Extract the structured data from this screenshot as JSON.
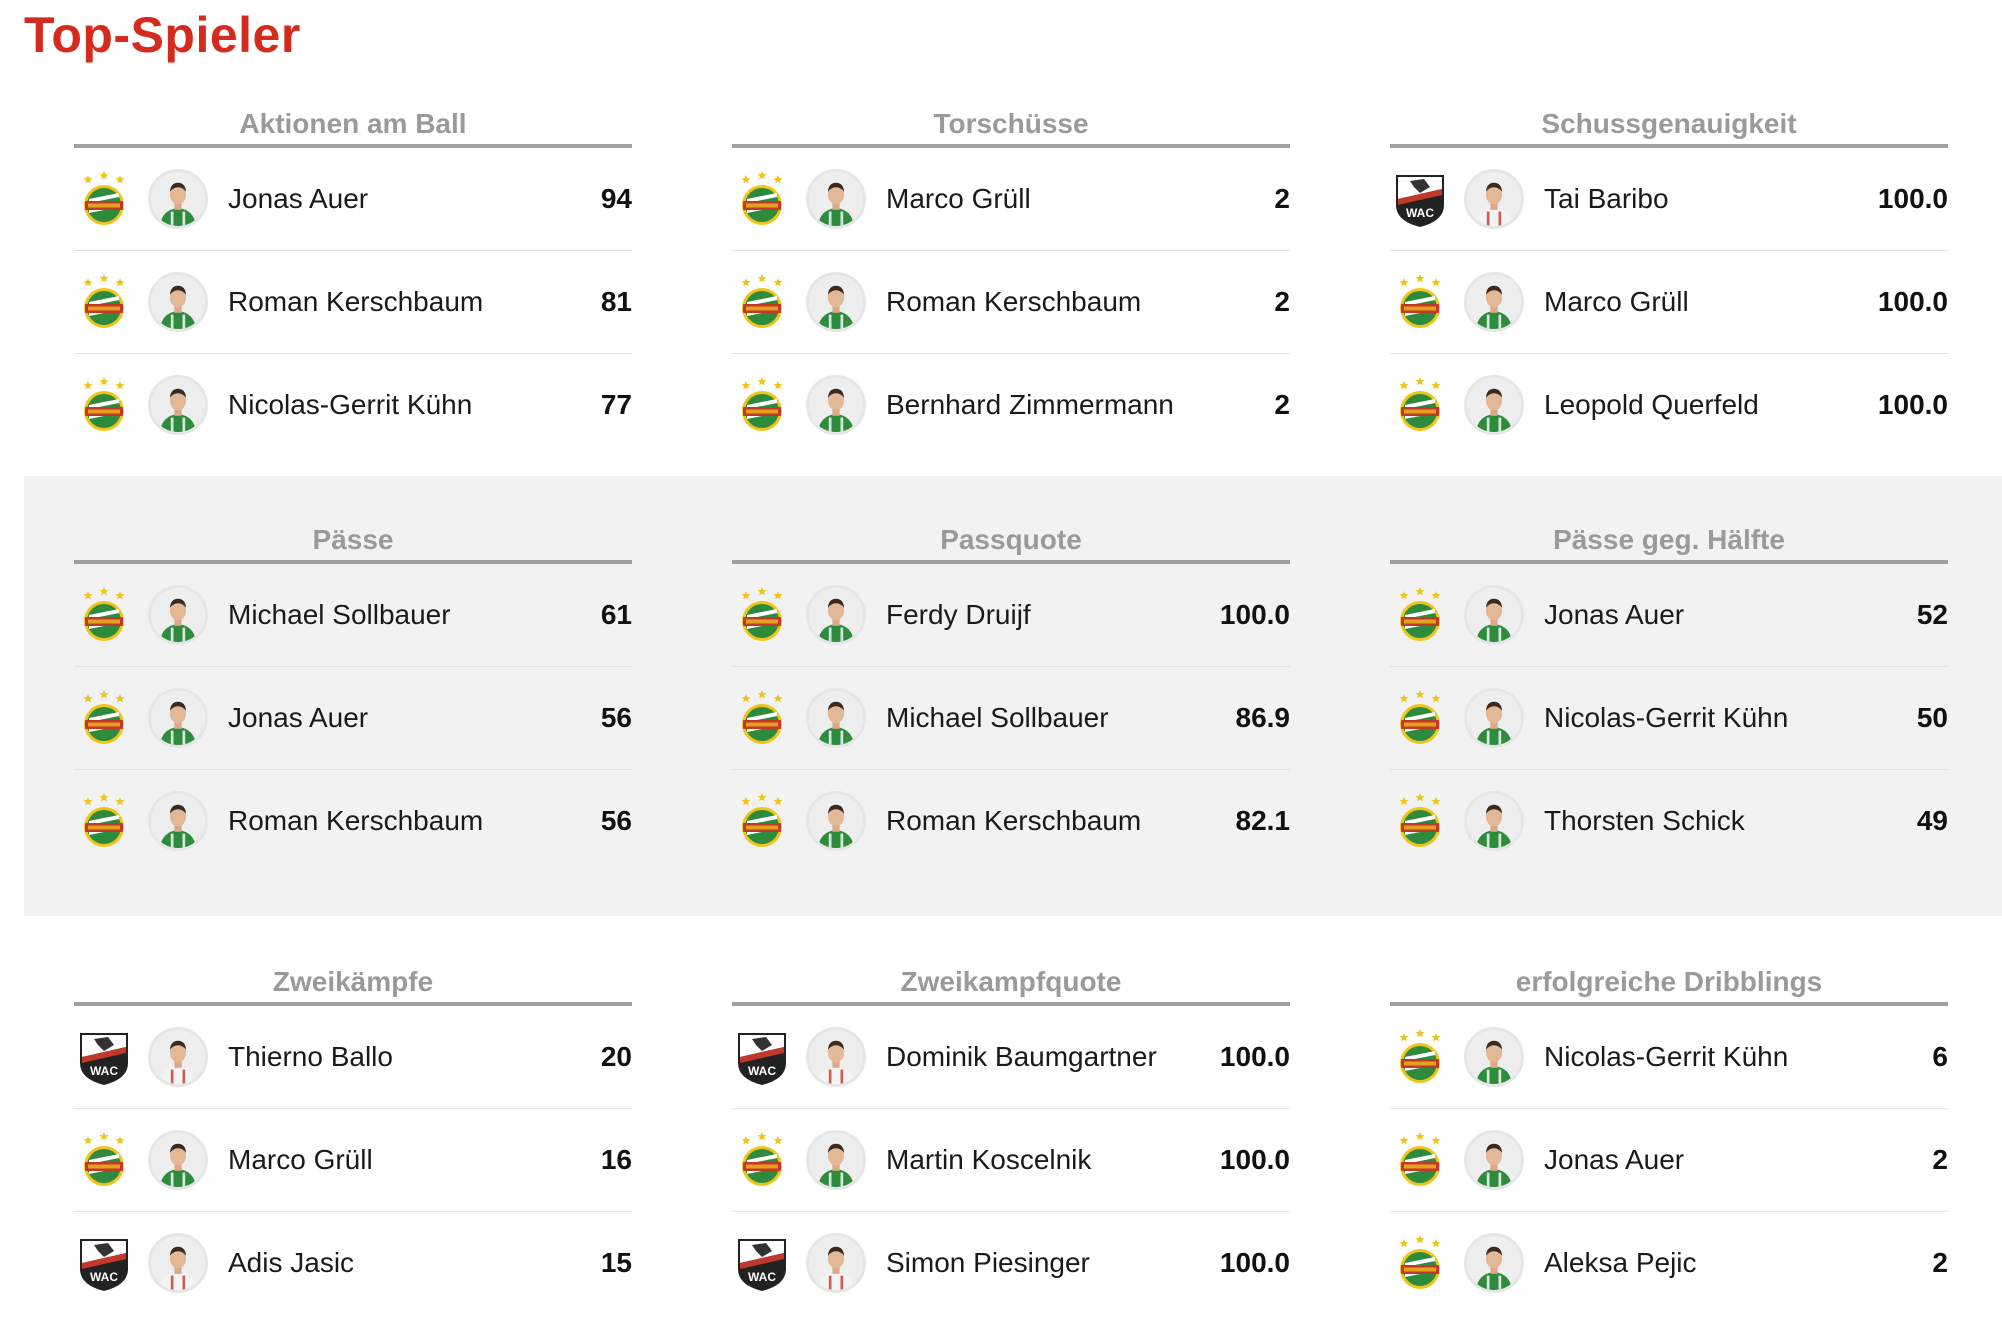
{
  "title": "Top-Spieler",
  "colors": {
    "accent": "#d52b1e",
    "header_text": "#9a9a9a",
    "rapid_green": "#2e8b3e",
    "wac_black": "#222222"
  },
  "rows": [
    {
      "shaded": false,
      "categories": [
        {
          "label": "Aktionen am Ball",
          "players": [
            {
              "club": "rapid-logo-icon",
              "name": "Jonas Auer",
              "value": "94"
            },
            {
              "club": "rapid-logo-icon",
              "name": "Roman Kerschbaum",
              "value": "81"
            },
            {
              "club": "rapid-logo-icon",
              "name": "Nicolas-Gerrit Kühn",
              "value": "77"
            }
          ]
        },
        {
          "label": "Torschüsse",
          "players": [
            {
              "club": "rapid-logo-icon",
              "name": "Marco Grüll",
              "value": "2"
            },
            {
              "club": "rapid-logo-icon",
              "name": "Roman Kerschbaum",
              "value": "2"
            },
            {
              "club": "rapid-logo-icon",
              "name": "Bernhard Zimmermann",
              "value": "2"
            }
          ]
        },
        {
          "label": "Schussgenauigkeit",
          "players": [
            {
              "club": "wac-logo-icon",
              "name": "Tai Baribo",
              "value": "100.0"
            },
            {
              "club": "rapid-logo-icon",
              "name": "Marco Grüll",
              "value": "100.0"
            },
            {
              "club": "rapid-logo-icon",
              "name": "Leopold Querfeld",
              "value": "100.0"
            }
          ]
        }
      ]
    },
    {
      "shaded": true,
      "categories": [
        {
          "label": "Pässe",
          "players": [
            {
              "club": "rapid-logo-icon",
              "name": "Michael Sollbauer",
              "value": "61"
            },
            {
              "club": "rapid-logo-icon",
              "name": "Jonas Auer",
              "value": "56"
            },
            {
              "club": "rapid-logo-icon",
              "name": "Roman Kerschbaum",
              "value": "56"
            }
          ]
        },
        {
          "label": "Passquote",
          "players": [
            {
              "club": "rapid-logo-icon",
              "name": "Ferdy Druijf",
              "value": "100.0"
            },
            {
              "club": "rapid-logo-icon",
              "name": "Michael Sollbauer",
              "value": "86.9"
            },
            {
              "club": "rapid-logo-icon",
              "name": "Roman Kerschbaum",
              "value": "82.1"
            }
          ]
        },
        {
          "label": "Pässe geg. Hälfte",
          "players": [
            {
              "club": "rapid-logo-icon",
              "name": "Jonas Auer",
              "value": "52"
            },
            {
              "club": "rapid-logo-icon",
              "name": "Nicolas-Gerrit Kühn",
              "value": "50"
            },
            {
              "club": "rapid-logo-icon",
              "name": "Thorsten Schick",
              "value": "49"
            }
          ]
        }
      ]
    },
    {
      "shaded": false,
      "categories": [
        {
          "label": "Zweikämpfe",
          "players": [
            {
              "club": "wac-logo-icon",
              "name": "Thierno Ballo",
              "value": "20"
            },
            {
              "club": "rapid-logo-icon",
              "name": "Marco Grüll",
              "value": "16"
            },
            {
              "club": "wac-logo-icon",
              "name": "Adis Jasic",
              "value": "15"
            }
          ]
        },
        {
          "label": "Zweikampfquote",
          "players": [
            {
              "club": "wac-logo-icon",
              "name": "Dominik Baumgartner",
              "value": "100.0"
            },
            {
              "club": "rapid-logo-icon",
              "name": "Martin Koscelnik",
              "value": "100.0"
            },
            {
              "club": "wac-logo-icon",
              "name": "Simon Piesinger",
              "value": "100.0"
            }
          ]
        },
        {
          "label": "erfolgreiche Dribblings",
          "players": [
            {
              "club": "rapid-logo-icon",
              "name": "Nicolas-Gerrit Kühn",
              "value": "6"
            },
            {
              "club": "rapid-logo-icon",
              "name": "Jonas Auer",
              "value": "2"
            },
            {
              "club": "rapid-logo-icon",
              "name": "Aleksa Pejic",
              "value": "2"
            }
          ]
        }
      ]
    }
  ]
}
